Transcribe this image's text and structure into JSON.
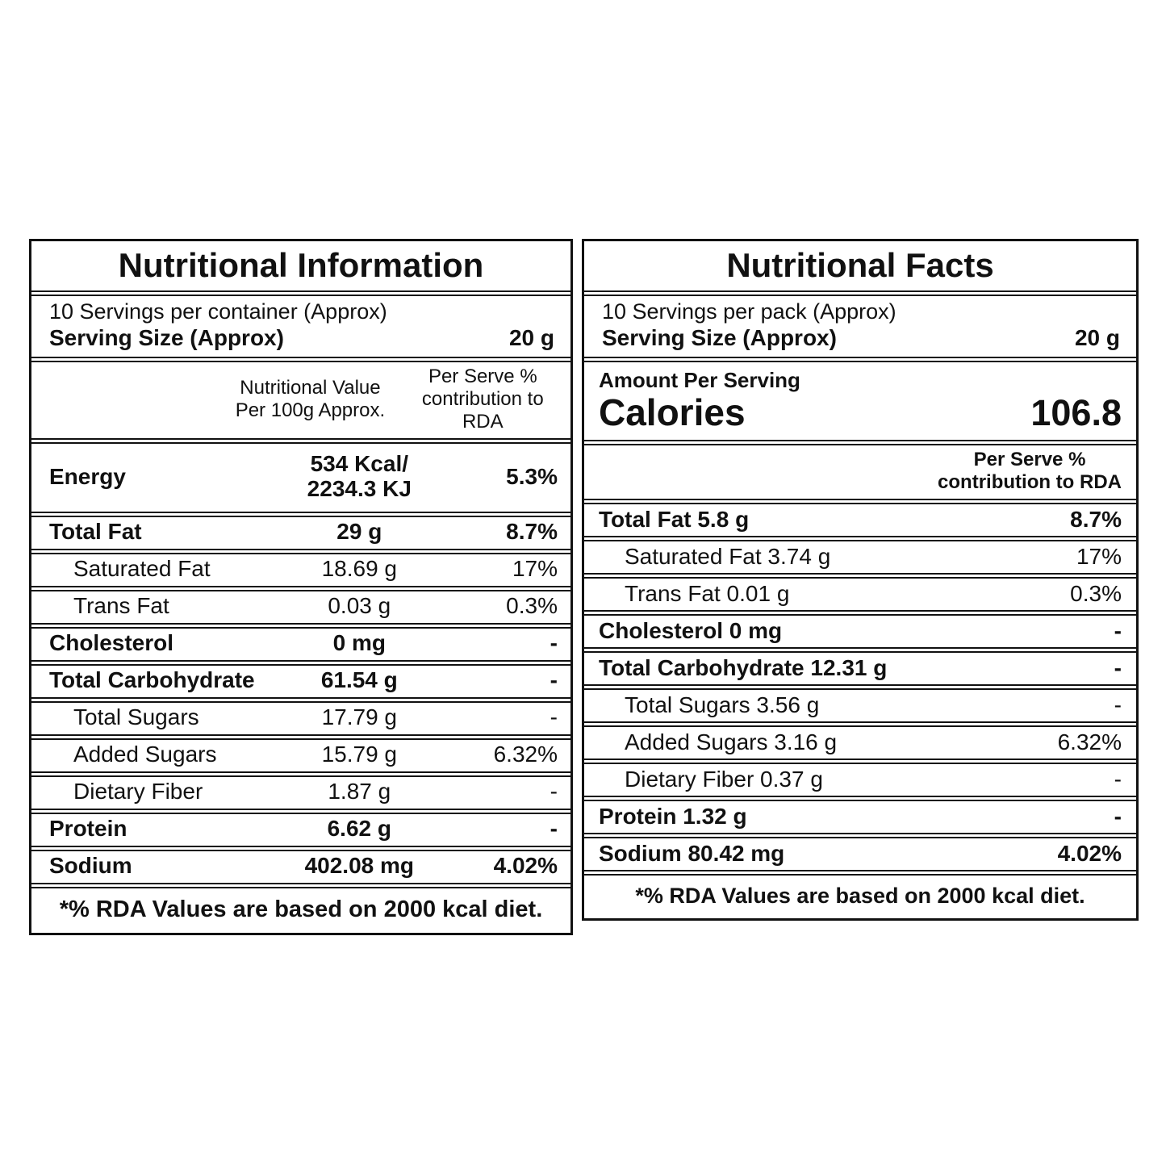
{
  "page": {
    "background_color": "#ffffff",
    "text_color": "#111111",
    "border_color": "#111111"
  },
  "left_panel": {
    "title": "Nutritional Information",
    "servings_line": "10 Servings per container (Approx)",
    "serving_size_label": "Serving Size (Approx)",
    "serving_size_value": "20 g",
    "value_column_header": [
      "Nutritional Value",
      "Per 100g Approx."
    ],
    "rda_column_header": [
      "Per Serve %",
      "contribution to RDA"
    ],
    "rows": [
      {
        "label": "Energy",
        "value_lines": [
          "534 Kcal/",
          "2234.3 KJ"
        ],
        "rda": "5.3%",
        "bold": true
      },
      {
        "label": "Total Fat",
        "value": "29 g",
        "rda": "8.7%",
        "bold": true
      },
      {
        "label": "Saturated Fat",
        "value": "18.69 g",
        "rda": "17%",
        "indent": true
      },
      {
        "label": "Trans Fat",
        "value": "0.03 g",
        "rda": "0.3%",
        "indent": true
      },
      {
        "label": "Cholesterol",
        "value": "0 mg",
        "rda": "-",
        "bold": true
      },
      {
        "label": "Total Carbohydrate",
        "value": "61.54 g",
        "rda": "-",
        "bold": true
      },
      {
        "label": "Total Sugars",
        "value": "17.79 g",
        "rda": "-",
        "indent": true
      },
      {
        "label": "Added Sugars",
        "value": "15.79 g",
        "rda": "6.32%",
        "indent": true
      },
      {
        "label": "Dietary Fiber",
        "value": "1.87 g",
        "rda": "-",
        "indent": true
      },
      {
        "label": "Protein",
        "value": "6.62 g",
        "rda": "-",
        "bold": true
      },
      {
        "label": "Sodium",
        "value": "402.08 mg",
        "rda": "4.02%",
        "bold": true
      }
    ],
    "footnote": "*% RDA Values are based on 2000 kcal diet."
  },
  "right_panel": {
    "title": "Nutritional Facts",
    "servings_line": "10 Servings per pack (Approx)",
    "serving_size_label": "Serving Size (Approx)",
    "serving_size_value": "20 g",
    "amount_per_serving_label": "Amount Per Serving",
    "calories_label": "Calories",
    "calories_value": "106.8",
    "rda_column_header": [
      "Per Serve %",
      "contribution to RDA"
    ],
    "rows": [
      {
        "label": "Total Fat 5.8 g",
        "rda": "8.7%",
        "bold": true
      },
      {
        "label": "Saturated Fat 3.74 g",
        "rda": "17%",
        "indent": true
      },
      {
        "label": "Trans Fat 0.01 g",
        "rda": "0.3%",
        "indent": true
      },
      {
        "label": "Cholesterol 0 mg",
        "rda": "-",
        "bold": true
      },
      {
        "label": "Total Carbohydrate 12.31 g",
        "rda": "-",
        "bold": true
      },
      {
        "label": "Total Sugars 3.56 g",
        "rda": "-",
        "indent": true
      },
      {
        "label": "Added Sugars 3.16 g",
        "rda": "6.32%",
        "indent": true
      },
      {
        "label": "Dietary Fiber 0.37 g",
        "rda": "-",
        "indent": true
      },
      {
        "label": "Protein 1.32 g",
        "rda": "-",
        "bold": true
      },
      {
        "label": "Sodium 80.42 mg",
        "rda": "4.02%",
        "bold": true
      }
    ],
    "footnote": "*% RDA Values are based on 2000 kcal diet."
  }
}
